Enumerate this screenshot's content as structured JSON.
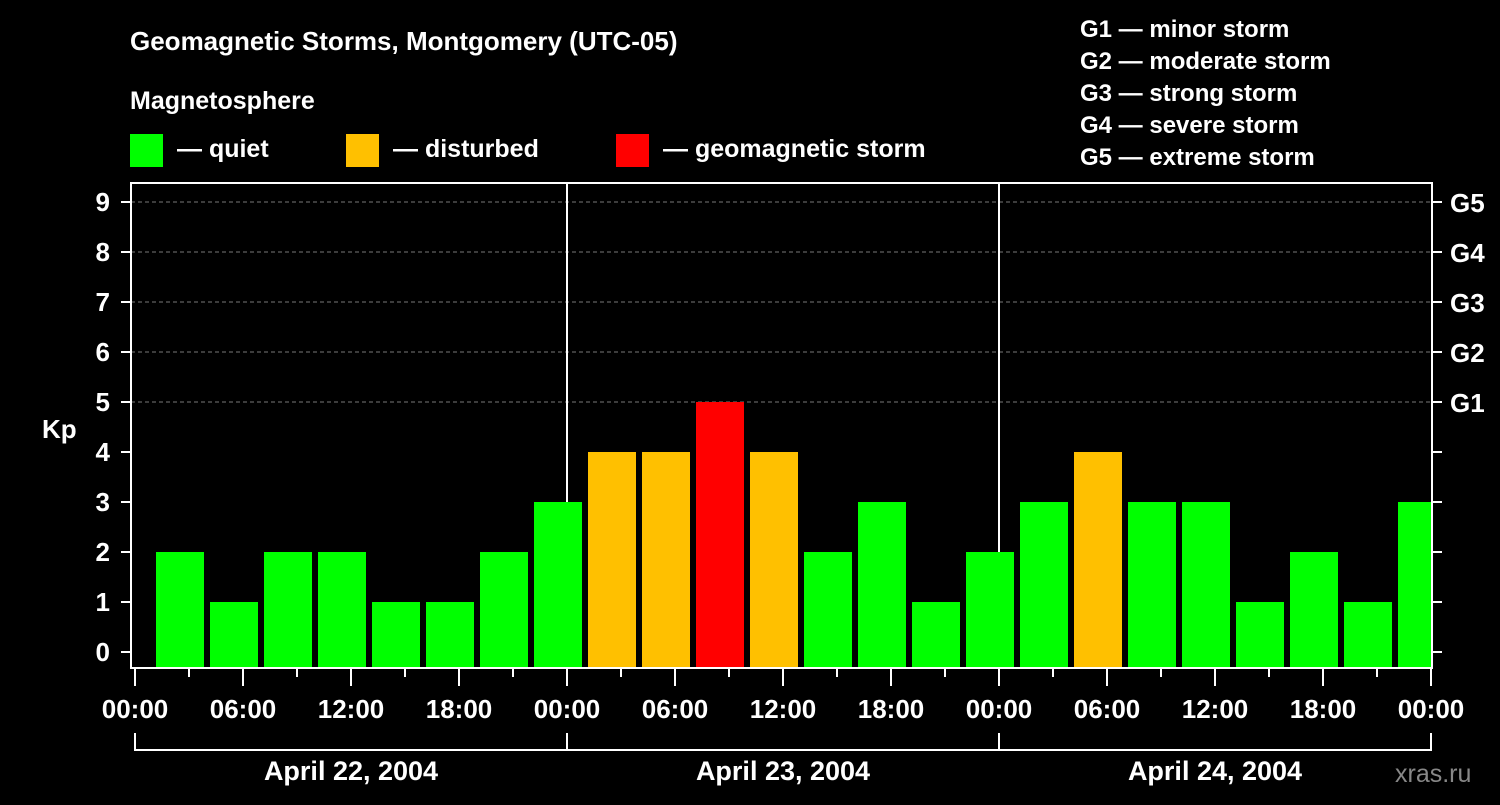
{
  "chart_data": {
    "type": "bar",
    "title": "Geomagnetic Storms, Montgomery (UTC-05)",
    "legend_title": "Magnetosphere",
    "legend": [
      {
        "label": "— quiet",
        "color": "#00ff00"
      },
      {
        "label": "— disturbed",
        "color": "#ffc000"
      },
      {
        "label": "— geomagnetic storm",
        "color": "#ff0000"
      }
    ],
    "storm_scale": [
      "G1 — minor storm",
      "G2 — moderate storm",
      "G3 — strong storm",
      "G4 — severe storm",
      "G5 — extreme storm"
    ],
    "ylabel": "Kp",
    "ylim": [
      0,
      9
    ],
    "yticks": [
      "0",
      "1",
      "2",
      "3",
      "4",
      "5",
      "6",
      "7",
      "8",
      "9"
    ],
    "right_ticks": [
      {
        "kp": 5,
        "label": "G1"
      },
      {
        "kp": 6,
        "label": "G2"
      },
      {
        "kp": 7,
        "label": "G3"
      },
      {
        "kp": 8,
        "label": "G4"
      },
      {
        "kp": 9,
        "label": "G5"
      }
    ],
    "xticks": [
      "00:00",
      "06:00",
      "12:00",
      "18:00",
      "00:00",
      "06:00",
      "12:00",
      "18:00",
      "00:00",
      "06:00",
      "12:00",
      "18:00",
      "00:00"
    ],
    "days": [
      "April 22, 2004",
      "April 23, 2004",
      "April 24, 2004"
    ],
    "interval_hours": 3,
    "offset_hours": 1,
    "values": [
      2,
      1,
      2,
      2,
      1,
      1,
      2,
      3,
      4,
      4,
      5,
      4,
      2,
      3,
      1,
      2,
      3,
      4,
      3,
      3,
      1,
      2,
      1,
      3
    ],
    "grid": true,
    "watermark": "xras.ru"
  }
}
